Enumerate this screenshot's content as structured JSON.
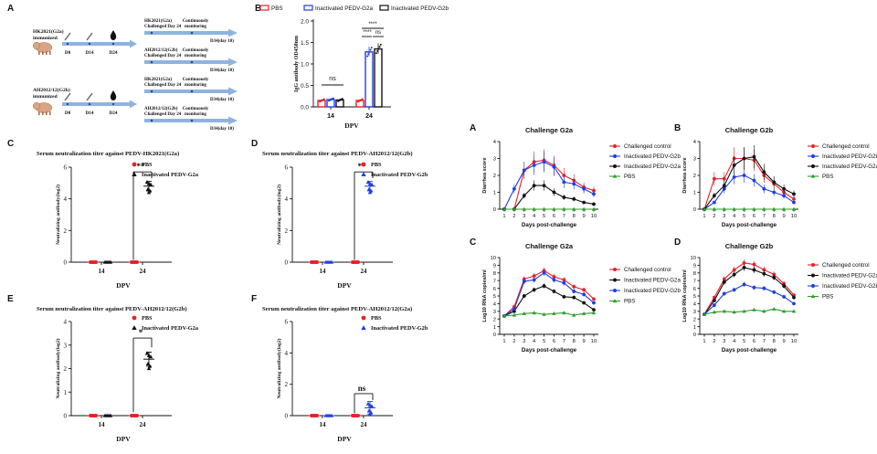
{
  "panel_A": {
    "letter": "A",
    "groups": [
      {
        "label_line1": "HK2021(G2a)",
        "label_line2": "immunized",
        "timepoints": [
          "D0",
          "D14",
          "D24"
        ],
        "challenges": [
          {
            "line1": "HK2021(G2a)",
            "line2": "Challenged Day 24",
            "monitor": "Continuously monitoring",
            "end": "D34(day 10)"
          },
          {
            "line1": "AH2012/12(G2b)",
            "line2": "Challenged Day 24",
            "monitor": "Continuously monitoring",
            "end": "D34(day 10)"
          }
        ]
      },
      {
        "label_line1": "AH2012/12(G2b)",
        "label_line2": "immunized",
        "timepoints": [
          "D0",
          "D14",
          "D24"
        ],
        "challenges": [
          {
            "line1": "HK2021(G2a)",
            "line2": "Challenged Day 24",
            "monitor": "Continuously monitoring",
            "end": "D34(day 10)"
          },
          {
            "line1": "AH2012/12(G2b)",
            "line2": "Challenged Day 24",
            "monitor": "Continuously monitoring",
            "end": "D34(day 10)"
          }
        ]
      }
    ]
  },
  "colors": {
    "red": "#e8202a",
    "blue": "#1f3fe0",
    "black": "#111111",
    "green": "#2aa02a"
  },
  "chart_data": [
    {
      "id": "B",
      "letter": "B",
      "type": "bar",
      "ylabel": "IgG antibody OD450nm",
      "xlabel": "DPV",
      "categories": [
        "14",
        "24"
      ],
      "ylim": [
        0,
        2.0
      ],
      "yticks": [
        0.0,
        0.5,
        1.0,
        1.5,
        2.0
      ],
      "legend": [
        "PBS",
        "Inactivated PEDV-G2a",
        "Inactivated PEDV-G2b"
      ],
      "series": [
        {
          "name": "PBS",
          "values": [
            0.15,
            0.15
          ],
          "color": "red"
        },
        {
          "name": "Inactivated PEDV-G2a",
          "values": [
            0.17,
            1.28
          ],
          "color": "blue"
        },
        {
          "name": "Inactivated PEDV-G2b",
          "values": [
            0.16,
            1.35
          ],
          "color": "black"
        }
      ],
      "annotations": [
        "ns",
        "****",
        "****",
        "ns"
      ]
    },
    {
      "id": "C",
      "letter": "C",
      "type": "scatter",
      "title": "Serum neutralization titer against PEDV-HK2021(G2a)",
      "ylabel": "Neutralizing antibody(log2)",
      "xlabel": "DPV",
      "categories": [
        "14",
        "24"
      ],
      "ylim": [
        0,
        6
      ],
      "yticks": [
        0,
        2,
        4,
        6
      ],
      "legend": [
        "PBS",
        "Inactivated PEDV-G2a"
      ],
      "series": [
        {
          "name": "PBS",
          "values": [
            0,
            0
          ],
          "color": "red",
          "marker": "circle"
        },
        {
          "name": "Inactivated PEDV-G2a",
          "values": [
            0,
            4.8
          ],
          "color": "black",
          "marker": "triangle"
        }
      ],
      "significance": "**"
    },
    {
      "id": "D",
      "letter": "D",
      "type": "scatter",
      "title": "Serum neutralization titer against PEDV-AH2012/12(G2b)",
      "ylabel": "Neutralizing antibody(log2)",
      "xlabel": "DPV",
      "categories": [
        "14",
        "24"
      ],
      "ylim": [
        0,
        6
      ],
      "yticks": [
        0,
        2,
        4,
        6
      ],
      "legend": [
        "PBS",
        "Inactivated PEDV-G2b"
      ],
      "series": [
        {
          "name": "PBS",
          "values": [
            0,
            0
          ],
          "color": "red",
          "marker": "circle"
        },
        {
          "name": "Inactivated PEDV-G2b",
          "values": [
            0,
            4.8
          ],
          "color": "blue",
          "marker": "triangle"
        }
      ],
      "significance": "**"
    },
    {
      "id": "E",
      "letter": "E",
      "type": "scatter",
      "title": "Serum neutralization titer against PEDV-AH2012/12(G2b)",
      "ylabel": "Neutralizing antibody(log2)",
      "xlabel": "DPV",
      "categories": [
        "14",
        "24"
      ],
      "ylim": [
        0,
        4
      ],
      "yticks": [
        0,
        1,
        2,
        3,
        4
      ],
      "legend": [
        "PBS",
        "Inactivated PEDV-G2a"
      ],
      "series": [
        {
          "name": "PBS",
          "values": [
            0,
            0
          ],
          "color": "red",
          "marker": "circle"
        },
        {
          "name": "Inactivated PEDV-G2a",
          "values": [
            0,
            2.4
          ],
          "color": "black",
          "marker": "triangle"
        }
      ],
      "significance": "*"
    },
    {
      "id": "F",
      "letter": "F",
      "type": "scatter",
      "title": "Serum neutralization titer against PEDV-AH2012/12(G2a)",
      "ylabel": "Neutralizing antibody(log2)",
      "xlabel": "DPV",
      "categories": [
        "14",
        "24"
      ],
      "ylim": [
        0,
        6
      ],
      "yticks": [
        0,
        2,
        4,
        6
      ],
      "legend": [
        "PBS",
        "Inactivated PEDV-G2b"
      ],
      "series": [
        {
          "name": "PBS",
          "values": [
            0,
            0
          ],
          "color": "red",
          "marker": "circle"
        },
        {
          "name": "Inactivated PEDV-G2b",
          "values": [
            0,
            0.5
          ],
          "color": "blue",
          "marker": "triangle"
        }
      ],
      "significance": "ns"
    },
    {
      "id": "LA",
      "letter": "A",
      "type": "line",
      "title": "Challenge G2a",
      "ylabel": "Diarrhea score",
      "xlabel": "Days post-challenge",
      "x": [
        1,
        2,
        3,
        4,
        5,
        6,
        7,
        8,
        9,
        10
      ],
      "ylim": [
        0,
        4
      ],
      "yticks": [
        0,
        1,
        2,
        3,
        4
      ],
      "series": [
        {
          "name": "Challenged control",
          "color": "red",
          "values": [
            0,
            0,
            2.3,
            2.8,
            2.9,
            2.6,
            2.0,
            1.7,
            1.3,
            1.1
          ]
        },
        {
          "name": "Inactivated PEDV-G2b",
          "color": "blue",
          "values": [
            0,
            1.2,
            2.3,
            2.6,
            2.8,
            2.5,
            1.6,
            1.5,
            1.2,
            0.9
          ]
        },
        {
          "name": "Inactivated PEDV-G2a",
          "color": "black",
          "values": [
            0,
            0,
            0.8,
            1.4,
            1.4,
            1.0,
            0.7,
            0.6,
            0.4,
            0.3
          ]
        },
        {
          "name": "PBS",
          "color": "green",
          "values": [
            0,
            0,
            0,
            0,
            0,
            0,
            0,
            0,
            0,
            0
          ]
        }
      ]
    },
    {
      "id": "LB",
      "letter": "B",
      "type": "line",
      "title": "Challenge G2b",
      "ylabel": "Diarrhea score",
      "xlabel": "Days post-challenge",
      "x": [
        1,
        2,
        3,
        4,
        5,
        6,
        7,
        8,
        9,
        10
      ],
      "ylim": [
        0,
        4
      ],
      "yticks": [
        0,
        1,
        2,
        3,
        4
      ],
      "series": [
        {
          "name": "Challenged control",
          "color": "red",
          "values": [
            0,
            1.8,
            1.8,
            3.0,
            3.0,
            2.9,
            2.0,
            1.5,
            1.0,
            0.6
          ]
        },
        {
          "name": "Inactivated PEDV-G2b",
          "color": "blue",
          "values": [
            0,
            0.4,
            1.2,
            1.9,
            2.0,
            1.7,
            1.2,
            1.0,
            0.8,
            0.4
          ]
        },
        {
          "name": "Inactivated PEDV-G2a",
          "color": "black",
          "values": [
            0,
            0.8,
            1.4,
            2.6,
            3.0,
            3.1,
            2.2,
            1.6,
            1.2,
            0.9
          ]
        },
        {
          "name": "PBS",
          "color": "green",
          "values": [
            0,
            0,
            0,
            0,
            0,
            0,
            0,
            0,
            0,
            0
          ]
        }
      ]
    },
    {
      "id": "LC",
      "letter": "C",
      "type": "line",
      "title": "Challenge G2a",
      "ylabel": "Log10 RNA copies/ml",
      "xlabel": "Days post-challenge",
      "x": [
        1,
        2,
        3,
        4,
        5,
        6,
        7,
        8,
        9,
        10
      ],
      "ylim": [
        0,
        10
      ],
      "yticks": [
        0,
        1,
        2,
        3,
        4,
        5,
        6,
        7,
        8,
        9,
        10
      ],
      "series": [
        {
          "name": "Challenged control",
          "color": "red",
          "values": [
            2.4,
            3.6,
            7.2,
            7.6,
            8.3,
            7.5,
            7.1,
            6.2,
            5.8,
            4.6
          ]
        },
        {
          "name": "Inactivated PEDV-G2a",
          "color": "black",
          "values": [
            2.4,
            3.0,
            5.0,
            5.8,
            6.3,
            5.6,
            4.9,
            4.8,
            4.1,
            3.2
          ]
        },
        {
          "name": "Inactivated PEDV-G2b",
          "color": "blue",
          "values": [
            2.4,
            3.3,
            6.9,
            7.1,
            8.0,
            7.1,
            6.7,
            5.6,
            5.2,
            4.1
          ]
        },
        {
          "name": "PBS",
          "color": "green",
          "values": [
            2.4,
            2.5,
            2.7,
            2.8,
            2.6,
            2.7,
            2.8,
            2.5,
            2.7,
            2.8
          ]
        }
      ]
    },
    {
      "id": "LD",
      "letter": "D",
      "type": "line",
      "title": "Challenge G2b",
      "ylabel": "Log10 RNA copies/ml",
      "xlabel": "Days post-challenge",
      "x": [
        1,
        2,
        3,
        4,
        5,
        6,
        7,
        8,
        9,
        10
      ],
      "ylim": [
        0,
        10
      ],
      "yticks": [
        0,
        1,
        2,
        3,
        4,
        5,
        6,
        7,
        8,
        9,
        10
      ],
      "series": [
        {
          "name": "Challenged control",
          "color": "red",
          "values": [
            2.6,
            4.8,
            7.2,
            8.4,
            9.3,
            9.1,
            8.4,
            7.8,
            6.6,
            5.1
          ]
        },
        {
          "name": "Inactivated PEDV-G2a",
          "color": "black",
          "values": [
            2.6,
            4.4,
            6.8,
            7.8,
            8.7,
            8.4,
            7.9,
            7.4,
            6.3,
            4.8
          ]
        },
        {
          "name": "Inactivated PEDV-G2b",
          "color": "blue",
          "values": [
            2.6,
            3.8,
            5.3,
            5.8,
            6.5,
            6.1,
            6.0,
            5.5,
            4.9,
            4.0
          ]
        },
        {
          "name": "PBS",
          "color": "green",
          "values": [
            2.6,
            2.9,
            3.0,
            2.9,
            3.0,
            3.2,
            3.0,
            3.3,
            3.0,
            3.0
          ]
        }
      ]
    }
  ]
}
